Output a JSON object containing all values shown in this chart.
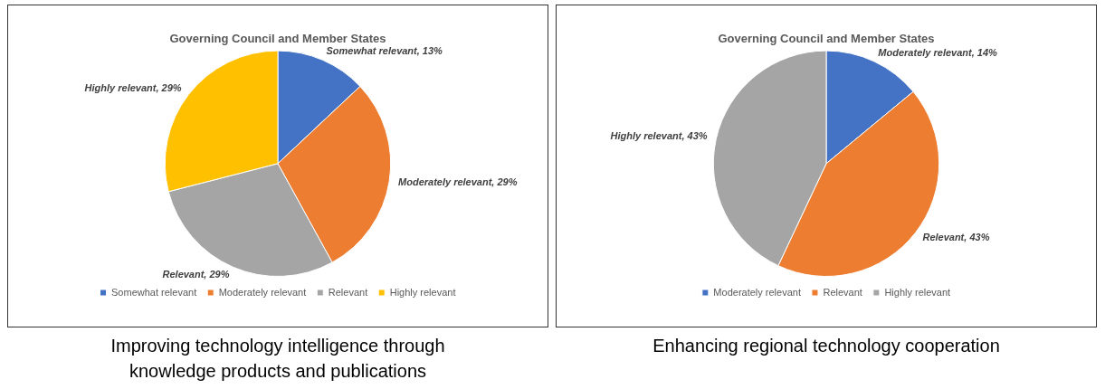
{
  "chart_data": [
    {
      "type": "pie",
      "title": "Governing Council and Member States",
      "categories": [
        "Somewhat relevant",
        "Moderately relevant",
        "Relevant",
        "Highly relevant"
      ],
      "values": [
        13,
        29,
        29,
        29
      ],
      "colors": [
        "#4472c4",
        "#ed7d31",
        "#a5a5a5",
        "#ffc000"
      ],
      "value_labels": [
        "Somewhat relevant, 13%",
        "Moderately relevant, 29%",
        "Relevant, 29%",
        "Highly relevant, 29%"
      ],
      "legend": "bottom",
      "annotations": [
        "Improving technology intelligence through knowledge products and publications"
      ]
    },
    {
      "type": "pie",
      "title": "Governing Council and Member States",
      "categories": [
        "Moderately relevant",
        "Relevant",
        "Highly relevant"
      ],
      "values": [
        14,
        43,
        43
      ],
      "colors": [
        "#4472c4",
        "#ed7d31",
        "#a5a5a5"
      ],
      "value_labels": [
        "Moderately relevant, 14%",
        "Relevant, 43%",
        "Highly relevant, 43%"
      ],
      "legend": "bottom",
      "annotations": [
        "Enhancing regional technology cooperation"
      ]
    }
  ]
}
